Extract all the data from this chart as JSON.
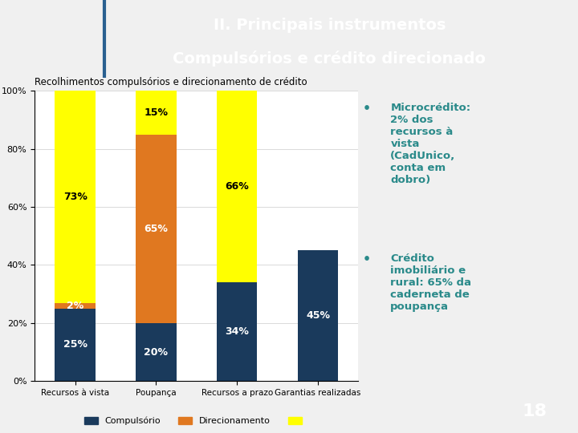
{
  "title_line1": "II. Principais instrumentos",
  "title_line2": "Compulsórios e crédito direcionado",
  "title_bg_color": "#1a3a5c",
  "title_text_color": "#ffffff",
  "chart_title": "Recolhimentos compulsórios e direcionamento de crédito",
  "categories": [
    "Recursos à vista",
    "Poupança",
    "Recursos a prazo",
    "Garantias realizadas"
  ],
  "compulsorio": [
    25,
    20,
    34,
    45
  ],
  "direcionamento": [
    2,
    65,
    0,
    0
  ],
  "livre": [
    73,
    15,
    66,
    0
  ],
  "color_compulsorio": "#1a3a5c",
  "color_direcionamento": "#e07820",
  "color_livre": "#ffff00",
  "legend_labels": [
    "Compulsório",
    "Direcionamento",
    ""
  ],
  "bullet1_line1": "Microcrédito:",
  "bullet1_line2": "2% dos",
  "bullet1_line3": "recursos à",
  "bullet1_line4": "vista",
  "bullet1_line5": "(CadUnico,",
  "bullet1_line6": "conta em",
  "bullet1_line7": "dobro)",
  "bullet2_line1": "Crédito",
  "bullet2_line2": "imobiliário e",
  "bullet2_line3": "rural: 65% da",
  "bullet2_line4": "caderneta de",
  "bullet2_line5": "poupança",
  "bullet_color": "#2a8a8a",
  "page_number": "18",
  "chart_bg_color": "#ffffff",
  "slide_bg_color": "#f0f0f0",
  "left_bar_color": "#1a3a5c",
  "ylim": [
    0,
    100
  ],
  "bar_width": 0.5
}
